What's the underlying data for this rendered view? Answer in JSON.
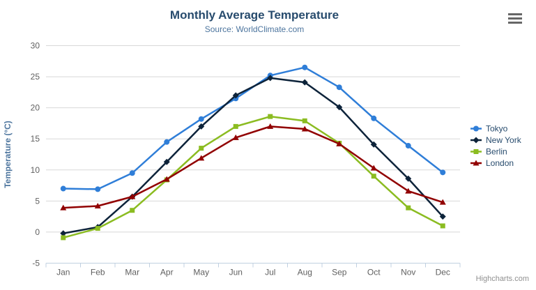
{
  "header": {
    "title": "Monthly Average Temperature",
    "subtitle": "Source: WorldClimate.com"
  },
  "export_menu": {
    "icon": "hamburger-icon"
  },
  "credit": {
    "label": "Highcharts.com"
  },
  "chart_data": {
    "type": "line",
    "title": "Monthly Average Temperature",
    "subtitle": "Source: WorldClimate.com",
    "categories": [
      "Jan",
      "Feb",
      "Mar",
      "Apr",
      "May",
      "Jun",
      "Jul",
      "Aug",
      "Sep",
      "Oct",
      "Nov",
      "Dec"
    ],
    "xlabel": "",
    "ylabel": "Temperature (°C)",
    "ylim": [
      -5,
      30
    ],
    "y_ticks": [
      -5,
      0,
      5,
      10,
      15,
      20,
      25,
      30
    ],
    "grid": true,
    "legend_position": "right",
    "series": [
      {
        "name": "Tokyo",
        "marker": "circle",
        "color": "#2f7ed8",
        "values": [
          7.0,
          6.9,
          9.5,
          14.5,
          18.2,
          21.5,
          25.2,
          26.5,
          23.3,
          18.3,
          13.9,
          9.6
        ]
      },
      {
        "name": "New York",
        "marker": "diamond",
        "color": "#0d233a",
        "values": [
          -0.2,
          0.8,
          5.7,
          11.3,
          17.0,
          22.0,
          24.8,
          24.1,
          20.1,
          14.1,
          8.6,
          2.5
        ]
      },
      {
        "name": "Berlin",
        "marker": "square",
        "color": "#8bbc21",
        "values": [
          -0.9,
          0.6,
          3.5,
          8.4,
          13.5,
          17.0,
          18.6,
          17.9,
          14.3,
          9.0,
          3.9,
          1.0
        ]
      },
      {
        "name": "London",
        "marker": "triangle",
        "color": "#910000",
        "values": [
          3.9,
          4.2,
          5.7,
          8.5,
          11.9,
          15.2,
          17.0,
          16.6,
          14.2,
          10.3,
          6.6,
          4.8
        ]
      }
    ]
  },
  "theme": {
    "background": "#ffffff",
    "title_color": "#274b6d",
    "subtitle_color": "#4d759e",
    "axis_label_color": "#606060",
    "axis_title_color": "#4d759e",
    "grid_color": "#d8d8d8",
    "axis_line_color": "#c0d0e0",
    "legend_text_color": "#274b6d",
    "credit_color": "#909090"
  }
}
